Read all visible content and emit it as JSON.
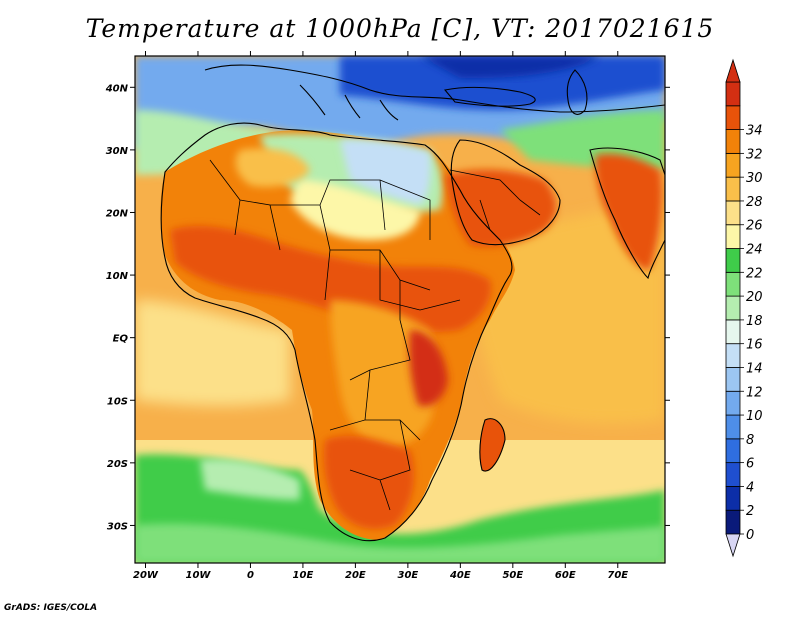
{
  "title": "Temperature at 1000hPa [C], VT: 2017021615",
  "credit": "GrADS: IGES/COLA",
  "lat_labels": [
    {
      "lat": 40,
      "label": "40N"
    },
    {
      "lat": 30,
      "label": "30N"
    },
    {
      "lat": 20,
      "label": "20N"
    },
    {
      "lat": 10,
      "label": "10N"
    },
    {
      "lat": 0,
      "label": "EQ"
    },
    {
      "lat": -10,
      "label": "10S"
    },
    {
      "lat": -20,
      "label": "20S"
    },
    {
      "lat": -30,
      "label": "30S"
    }
  ],
  "lon_labels": [
    {
      "lon": -20,
      "label": "20W"
    },
    {
      "lon": -10,
      "label": "10W"
    },
    {
      "lon": 0,
      "label": "0"
    },
    {
      "lon": 10,
      "label": "10E"
    },
    {
      "lon": 20,
      "label": "20E"
    },
    {
      "lon": 30,
      "label": "30E"
    },
    {
      "lon": 40,
      "label": "40E"
    },
    {
      "lon": 50,
      "label": "50E"
    },
    {
      "lon": 60,
      "label": "60E"
    },
    {
      "lon": 70,
      "label": "70E"
    }
  ],
  "map_extent": {
    "lon_min": -22,
    "lon_max": 79,
    "lat_min": -36,
    "lat_max": 45
  },
  "colorbar": {
    "levels": [
      "0",
      "2",
      "4",
      "6",
      "8",
      "10",
      "12",
      "14",
      "16",
      "18",
      "20",
      "22",
      "24",
      "26",
      "28",
      "30",
      "32",
      "34"
    ],
    "colors": [
      "#0a1a7a",
      "#0c2ea8",
      "#1f4fd0",
      "#2f6ee0",
      "#4e8ee8",
      "#73aaee",
      "#9cc6f2",
      "#c4dff6",
      "#e6f7ee",
      "#b5edb0",
      "#7ee07a",
      "#3fcc4a",
      "#fdf7a8",
      "#fce089",
      "#f9bf4a",
      "#f7a420",
      "#f28209",
      "#e8530a",
      "#d32f12"
    ],
    "under_color": "#d8d6f4",
    "over_color": "#d32f12"
  }
}
